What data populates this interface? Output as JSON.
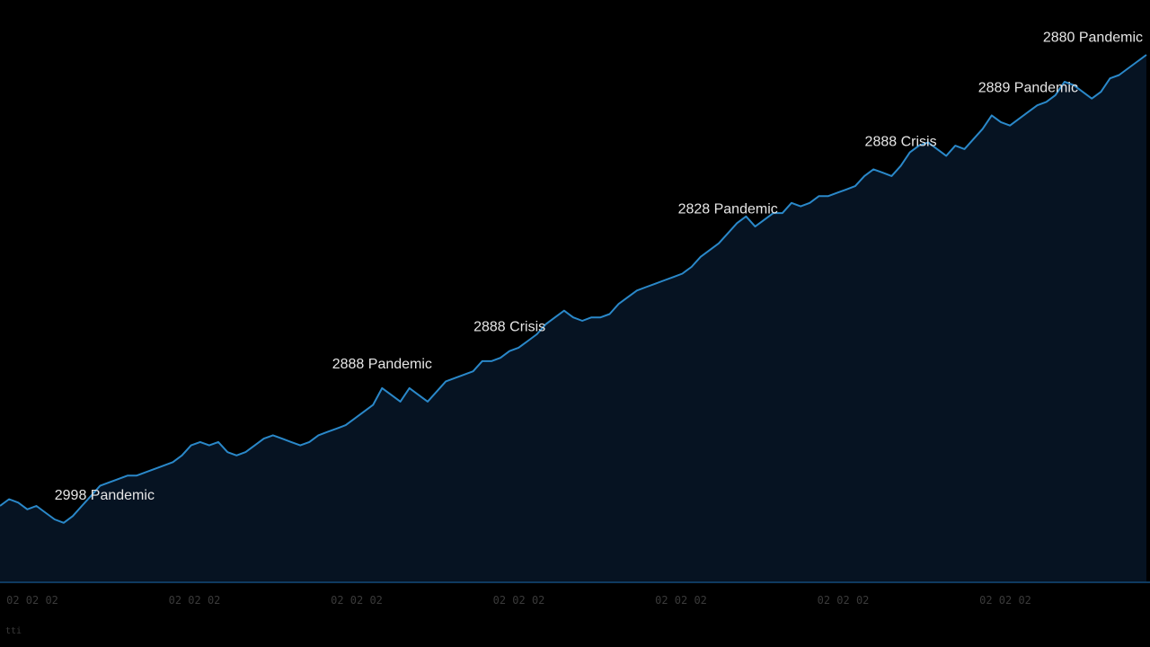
{
  "chart_data": {
    "type": "area",
    "title": "",
    "xlabel": "",
    "ylabel": "",
    "x_ticks": [
      "02 02 02",
      "02 02 02",
      "02 02 02",
      "02 02 02",
      "02 02 02",
      "02 02 02",
      "02 02 02"
    ],
    "grid": false,
    "legend": "none",
    "series": [
      {
        "values": [
          12,
          14,
          13,
          11,
          12,
          10,
          8,
          7,
          9,
          12,
          15,
          18,
          19,
          20,
          21,
          21,
          22,
          23,
          24,
          25,
          27,
          30,
          31,
          30,
          31,
          28,
          27,
          28,
          30,
          32,
          33,
          32,
          31,
          30,
          31,
          33,
          34,
          35,
          36,
          38,
          40,
          42,
          47,
          45,
          43,
          47,
          45,
          43,
          46,
          49,
          50,
          51,
          52,
          55,
          55,
          56,
          58,
          59,
          61,
          63,
          66,
          68,
          70,
          68,
          67,
          68,
          68,
          69,
          72,
          74,
          76,
          77,
          78,
          79,
          80,
          81,
          83,
          86,
          88,
          90,
          93,
          96,
          98,
          95,
          97,
          99,
          99,
          102,
          101,
          102,
          104,
          104,
          105,
          106,
          107,
          110,
          112,
          111,
          110,
          113,
          117,
          119,
          120,
          118,
          116,
          119,
          118,
          121,
          124,
          128,
          126,
          125,
          127,
          129,
          131,
          132,
          134,
          138,
          137,
          135,
          133,
          135,
          139,
          140,
          142,
          144,
          146
        ]
      }
    ],
    "annotations": [
      {
        "label": "2998 Pandemic",
        "index": 6
      },
      {
        "label": "2888 Pandemic",
        "index": 42
      },
      {
        "label": "2888 Crisis",
        "index": 56
      },
      {
        "label": "2828 Pandemic",
        "index": 80
      },
      {
        "label": "2888 Crisis",
        "index": 99
      },
      {
        "label": "2889 Pandemic",
        "index": 113
      },
      {
        "label": "2880 Pandemic",
        "index": 125
      }
    ],
    "colors": {
      "line": "#2a88c9",
      "fill": "#061322",
      "background": "#000000",
      "baseline": "#0f3a60"
    }
  },
  "corner_label": "tti"
}
